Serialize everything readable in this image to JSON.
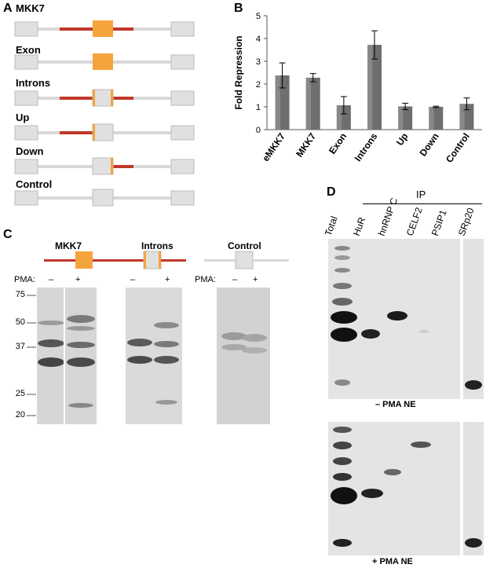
{
  "panels": {
    "a": "A",
    "b": "B",
    "c": "C",
    "d": "D"
  },
  "panel_a": {
    "constructs": [
      {
        "label": "MKK7"
      },
      {
        "label": "Exon"
      },
      {
        "label": "Introns"
      },
      {
        "label": "Up"
      },
      {
        "label": "Down"
      },
      {
        "label": "Control"
      }
    ]
  },
  "chart_data": {
    "type": "bar",
    "categories": [
      "eMKK7",
      "MKK7",
      "Exon",
      "Introns",
      "Up",
      "Down",
      "Control"
    ],
    "values": [
      2.38,
      2.28,
      1.07,
      3.72,
      1.02,
      1.0,
      1.13
    ],
    "errors": [
      0.55,
      0.18,
      0.38,
      0.62,
      0.14,
      0.03,
      0.26
    ],
    "ylabel": "Fold Repression",
    "ylim": [
      0,
      5
    ],
    "yticks": [
      0,
      1,
      2,
      3,
      4,
      5
    ],
    "bar_color": "#6e6e6e",
    "grid": false
  },
  "panel_c": {
    "gels": [
      {
        "title": "MKK7",
        "pma_label": "PMA:",
        "minus": "–",
        "plus": "+"
      },
      {
        "title": "Introns",
        "pma_label": "PMA:",
        "minus": "–",
        "plus": "+"
      },
      {
        "title": "Control",
        "pma_label": "PMA:",
        "minus": "–",
        "plus": "+"
      }
    ],
    "markers": [
      "75",
      "50",
      "37",
      "25",
      "20"
    ]
  },
  "panel_d": {
    "ip_label": "IP",
    "lanes": [
      "Total",
      "HuR",
      "hnRNP C",
      "CELF2",
      "PSIP1",
      "SRp20"
    ],
    "top_caption": "– PMA NE",
    "bottom_caption": "+ PMA NE"
  },
  "colors": {
    "exon_orange": "#f5a33d",
    "intron_red": "#c0392b",
    "box_grey": "#e0e0e0"
  }
}
